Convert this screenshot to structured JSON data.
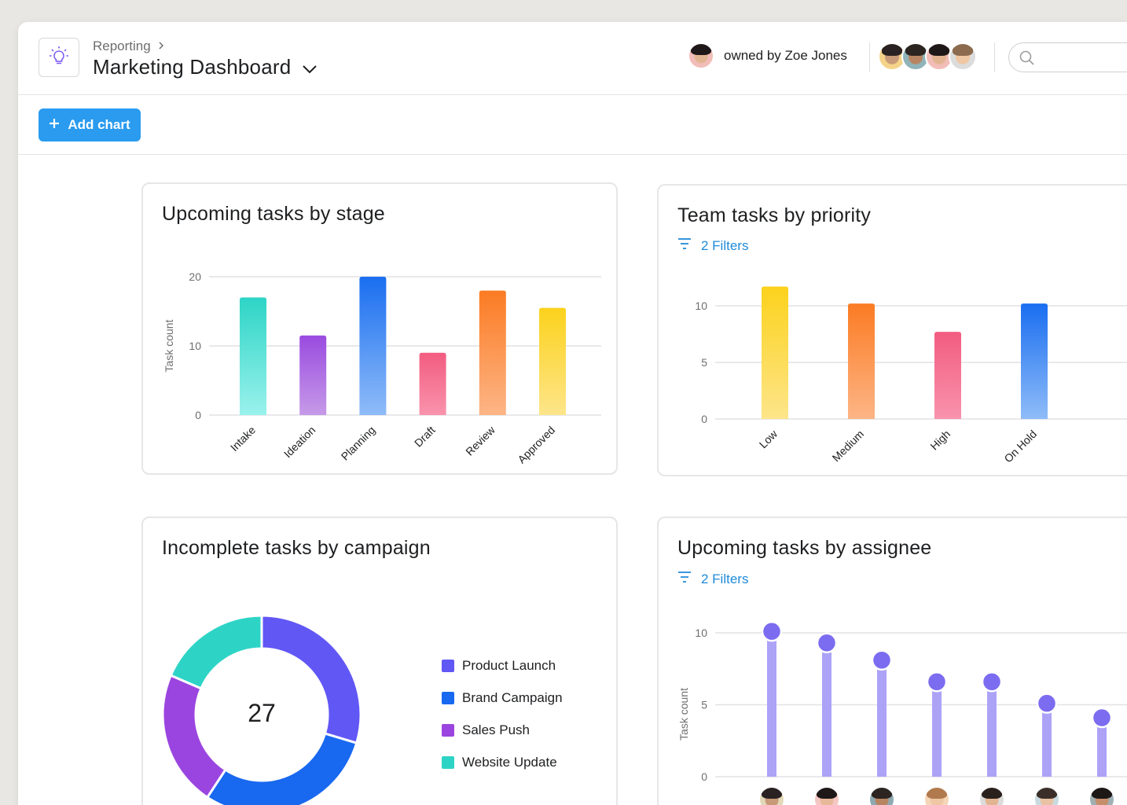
{
  "header": {
    "breadcrumb": "Reporting",
    "title": "Marketing Dashboard",
    "owner_text": "owned by Zoe Jones"
  },
  "toolbar": {
    "add_chart_label": "Add chart"
  },
  "colors": {
    "accent": "#2a9bef",
    "link": "#1f8ad8",
    "grid": "#e2e2e5",
    "axis_text": "#6d6e6f"
  },
  "icons": [
    "lightbulb-icon",
    "chevron-right-icon",
    "chevron-down-icon",
    "search-icon",
    "plus-icon",
    "filter-icon"
  ],
  "cards": {
    "stage": {
      "title": "Upcoming tasks by stage"
    },
    "priority": {
      "title": "Team tasks by priority",
      "filters": "2 Filters"
    },
    "campaign": {
      "title": "Incomplete tasks by campaign",
      "total": "27"
    },
    "assignee": {
      "title": "Upcoming tasks by assignee",
      "filters": "2 Filters"
    }
  },
  "chart_data": [
    {
      "id": "stage",
      "type": "bar",
      "title": "Upcoming tasks by stage",
      "ylabel": "Task count",
      "ylim": [
        0,
        20
      ],
      "yticks": [
        0,
        10,
        20
      ],
      "categories": [
        "Intake",
        "Ideation",
        "Planning",
        "Draft",
        "Review",
        "Approved"
      ],
      "values": [
        17,
        11.5,
        20,
        9,
        18,
        15.5
      ],
      "gradients": [
        [
          "#2dd4c6",
          "#9af2ec"
        ],
        [
          "#9a4be0",
          "#c69ae8"
        ],
        [
          "#1a6ef0",
          "#8fbcf8"
        ],
        [
          "#f25c80",
          "#f993ad"
        ],
        [
          "#fb7b23",
          "#fdb586"
        ],
        [
          "#fcd21c",
          "#fde58a"
        ]
      ],
      "grid": true
    },
    {
      "id": "priority",
      "type": "bar",
      "title": "Team tasks by priority",
      "ylim": [
        0,
        10
      ],
      "yticks": [
        0,
        5,
        10
      ],
      "categories": [
        "Low",
        "Medium",
        "High",
        "On Hold"
      ],
      "values": [
        11.7,
        10.2,
        7.7,
        10.2
      ],
      "gradients": [
        [
          "#fcd21c",
          "#fde58a"
        ],
        [
          "#fb7b23",
          "#fdb586"
        ],
        [
          "#f25c80",
          "#f993ad"
        ],
        [
          "#1a6ef0",
          "#8fbcf8"
        ]
      ],
      "grid": true
    },
    {
      "id": "campaign",
      "type": "pie",
      "title": "Incomplete tasks by campaign",
      "center_label": "27",
      "labels": [
        "Product Launch",
        "Brand Campaign",
        "Sales Push",
        "Website Update"
      ],
      "values": [
        8,
        8,
        6,
        5
      ],
      "colors": [
        "#6157f5",
        "#1968f0",
        "#9b45e0",
        "#2dd4c6"
      ],
      "legend": "right"
    },
    {
      "id": "assignee",
      "type": "scatter",
      "title": "Upcoming tasks by assignee",
      "ylabel": "Task count",
      "ylim": [
        0,
        10
      ],
      "yticks": [
        0,
        5,
        10
      ],
      "values": [
        10.1,
        9.3,
        8.1,
        6.6,
        6.6,
        5.1,
        4.1
      ],
      "color": "#7b6cf0",
      "stem_color": "#aca3f7",
      "grid": true
    }
  ],
  "assignee_avatars": [
    {
      "skin": "#c99a78",
      "hair": "#2a2222",
      "bg": "#e3d9b8"
    },
    {
      "skin": "#e8b89a",
      "hair": "#1e1818",
      "bg": "#f5c7c4"
    },
    {
      "skin": "#b88563",
      "hair": "#2c2420",
      "bg": "#8ea9b2"
    },
    {
      "skin": "#f0c7a4",
      "hair": "#b07a4e",
      "bg": "#f5d6b8"
    },
    {
      "skin": "#e2b592",
      "hair": "#2a201c",
      "bg": "#dcdcdc"
    },
    {
      "skin": "#e8c2a2",
      "hair": "#3b2e28",
      "bg": "#c9dbe0"
    },
    {
      "skin": "#c58f6c",
      "hair": "#1d1816",
      "bg": "#9fb0b4"
    }
  ],
  "header_avatars": {
    "owner": {
      "skin": "#e2b592",
      "hair": "#1e1818",
      "bg": "#f2bdb8"
    },
    "members": [
      {
        "skin": "#c99a78",
        "hair": "#2a2222",
        "bg": "#f5d48a"
      },
      {
        "skin": "#b88563",
        "hair": "#2c2420",
        "bg": "#8fb3b9"
      },
      {
        "skin": "#e2b592",
        "hair": "#1e1818",
        "bg": "#f2bdb8"
      },
      {
        "skin": "#f0c7a4",
        "hair": "#8c6a4e",
        "bg": "#dcdcdc"
      }
    ]
  }
}
